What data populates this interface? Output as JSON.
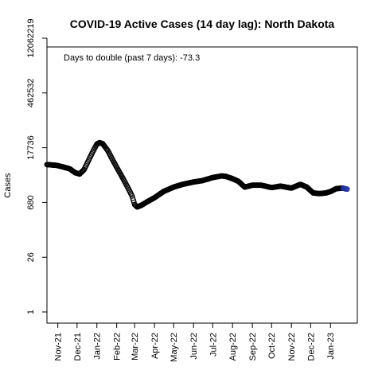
{
  "chart_data": {
    "type": "scatter",
    "title": "COVID-19 Active Cases (14 day lag): North Dakota",
    "xlabel": "",
    "ylabel": "Cases",
    "y_scale": "log",
    "y_ticks": [
      1,
      26,
      680,
      17736,
      462532,
      12062219
    ],
    "y_tick_labels": [
      "1",
      "26",
      "680",
      "17736",
      "462532",
      "12062219"
    ],
    "x_ticks": [
      "2021-11-01",
      "2021-12-01",
      "2022-01-01",
      "2022-02-01",
      "2022-03-01",
      "2022-04-01",
      "2022-05-01",
      "2022-06-01",
      "2022-07-01",
      "2022-08-01",
      "2022-09-01",
      "2022-10-01",
      "2022-11-01",
      "2022-12-01",
      "2023-01-01"
    ],
    "x_tick_labels": [
      "Nov-21",
      "Dec-21",
      "Jan-22",
      "Feb-22",
      "Mar-22",
      "Apr-22",
      "May-22",
      "Jun-22",
      "Jul-22",
      "Aug-22",
      "Sep-22",
      "Oct-22",
      "Nov-22",
      "Dec-22",
      "Jan-23"
    ],
    "xlim": [
      "2021-10-15",
      "2023-02-12"
    ],
    "annotation": "Days to double (past 7 days): -73.3",
    "marker_color": "#000000",
    "last_points_color": "#2233aa",
    "series": [
      {
        "points": [
          [
            "2021-10-15",
            6500
          ],
          [
            "2021-10-30",
            6200
          ],
          [
            "2021-11-10",
            5600
          ],
          [
            "2021-11-20",
            5000
          ],
          [
            "2021-11-28",
            4000
          ],
          [
            "2021-12-05",
            3700
          ],
          [
            "2021-12-12",
            4800
          ],
          [
            "2021-12-20",
            9000
          ],
          [
            "2021-12-27",
            15500
          ],
          [
            "2022-01-01",
            22000
          ],
          [
            "2022-01-05",
            24000
          ],
          [
            "2022-01-10",
            22500
          ],
          [
            "2022-01-18",
            15000
          ],
          [
            "2022-01-25",
            9000
          ],
          [
            "2022-02-01",
            5500
          ],
          [
            "2022-02-10",
            3000
          ],
          [
            "2022-02-18",
            1700
          ],
          [
            "2022-02-25",
            1000
          ],
          [
            "2022-03-01",
            600
          ],
          [
            "2022-03-05",
            520
          ],
          [
            "2022-03-12",
            580
          ],
          [
            "2022-03-20",
            700
          ],
          [
            "2022-04-01",
            900
          ],
          [
            "2022-04-15",
            1300
          ],
          [
            "2022-05-01",
            1700
          ],
          [
            "2022-05-15",
            2000
          ],
          [
            "2022-06-01",
            2300
          ],
          [
            "2022-06-15",
            2500
          ],
          [
            "2022-07-01",
            3000
          ],
          [
            "2022-07-15",
            3300
          ],
          [
            "2022-07-22",
            3200
          ],
          [
            "2022-08-01",
            2800
          ],
          [
            "2022-08-10",
            2400
          ],
          [
            "2022-08-20",
            1700
          ],
          [
            "2022-09-01",
            1900
          ],
          [
            "2022-09-15",
            1900
          ],
          [
            "2022-10-01",
            1650
          ],
          [
            "2022-10-15",
            1800
          ],
          [
            "2022-11-01",
            1600
          ],
          [
            "2022-11-15",
            2000
          ],
          [
            "2022-11-25",
            1700
          ],
          [
            "2022-12-05",
            1200
          ],
          [
            "2022-12-15",
            1150
          ],
          [
            "2022-12-25",
            1200
          ],
          [
            "2023-01-01",
            1300
          ],
          [
            "2023-01-10",
            1550
          ],
          [
            "2023-01-20",
            1600
          ],
          [
            "2023-01-27",
            1500
          ]
        ]
      }
    ]
  }
}
